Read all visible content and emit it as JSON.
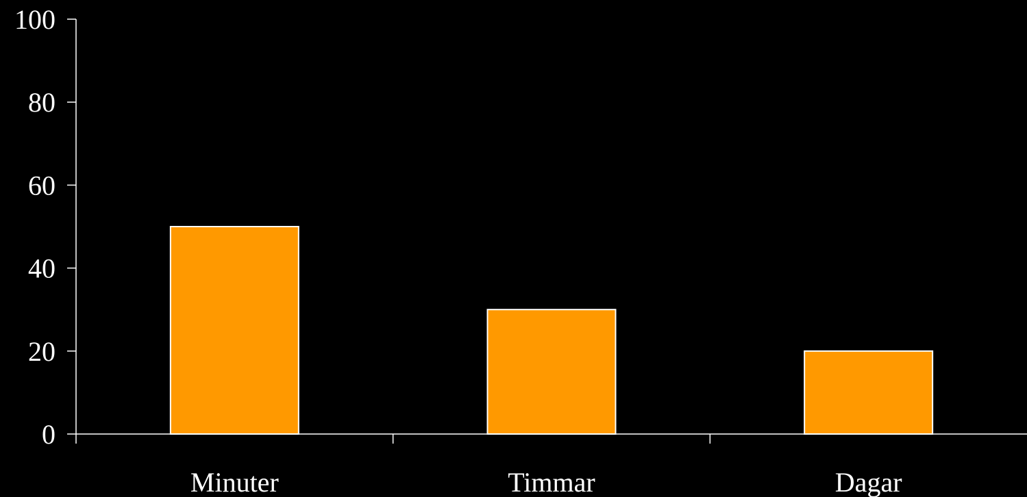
{
  "chart_data": {
    "type": "bar",
    "title": "",
    "xlabel": "",
    "ylabel": "",
    "categories": [
      "Minuter",
      "Timmar",
      "Dagar"
    ],
    "values": [
      50,
      30,
      20
    ],
    "ylim": [
      0,
      100
    ],
    "yticks": [
      "0",
      "20",
      "40",
      "60",
      "80",
      "100"
    ],
    "grid": false,
    "legend": "none",
    "colors": {
      "background": "#000000",
      "bar_fill": "#ff9900",
      "bar_stroke": "#ffffff",
      "axis": "#ffffff",
      "text": "#ffffff"
    }
  }
}
